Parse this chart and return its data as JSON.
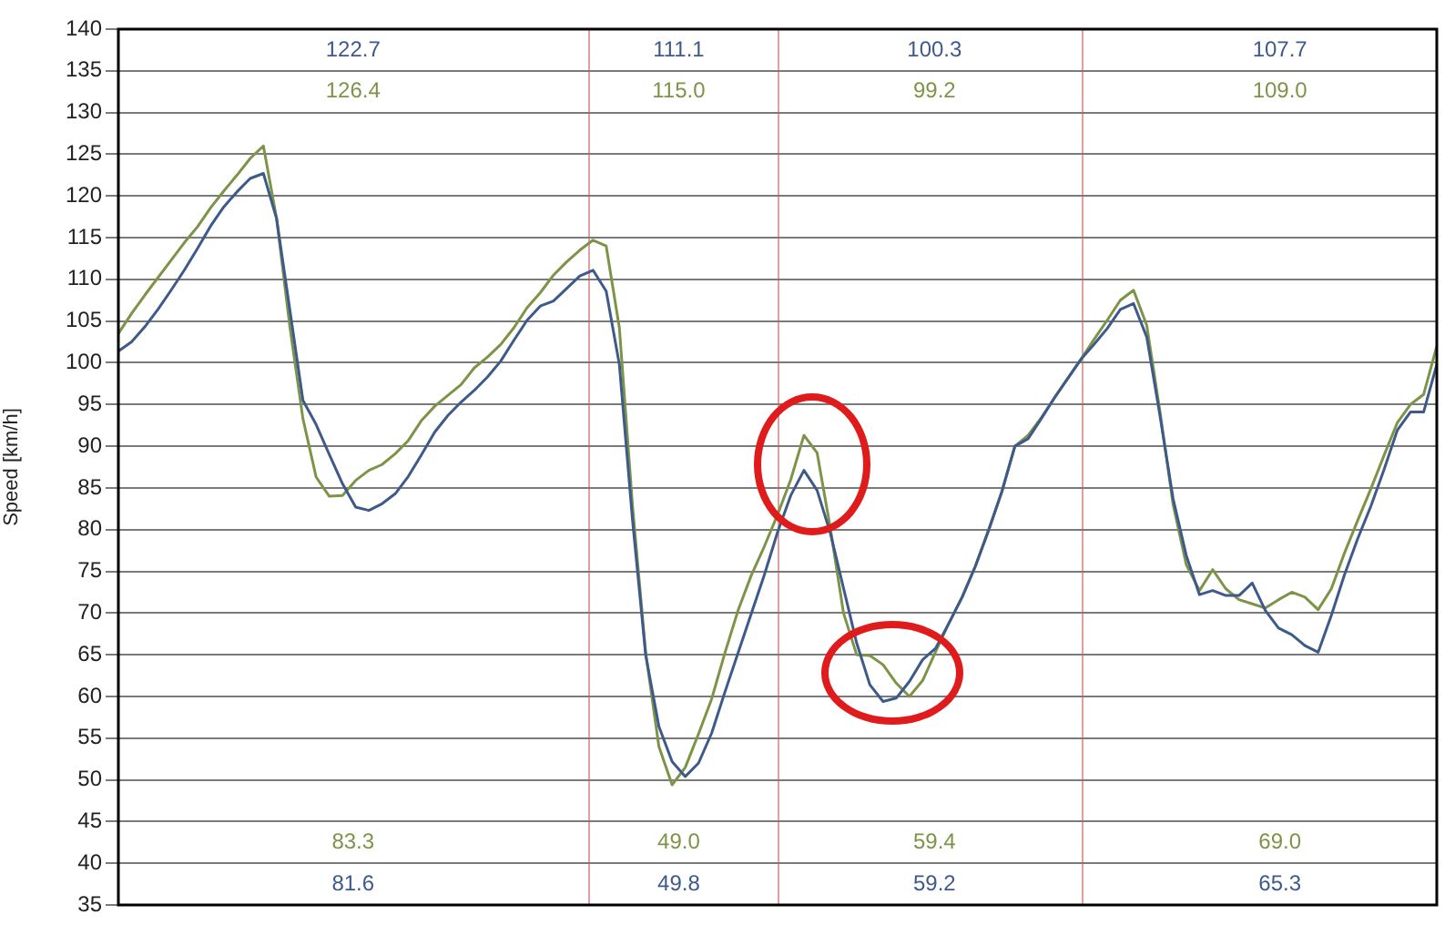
{
  "chart_data": {
    "type": "line",
    "ylabel": "Speed [km/h]",
    "ylim": [
      35,
      140
    ],
    "yticks": [
      35,
      40,
      45,
      50,
      55,
      60,
      65,
      70,
      75,
      80,
      85,
      90,
      95,
      100,
      105,
      110,
      115,
      120,
      125,
      130,
      135,
      140
    ],
    "tick_labels": "y",
    "grid": "y",
    "legend": false,
    "marker": "none",
    "line_style": "solid",
    "categories": [
      null,
      null,
      null,
      null,
      null,
      null,
      null,
      null,
      null,
      null,
      null,
      null,
      null,
      null,
      null,
      null,
      null,
      null,
      null,
      null,
      null,
      null,
      null,
      null,
      null,
      null,
      null,
      null,
      null,
      null,
      null,
      null,
      null,
      null,
      null,
      null,
      null,
      null,
      null,
      null,
      null,
      null,
      null,
      null,
      null,
      null,
      null,
      null,
      null,
      null,
      null,
      null,
      null,
      null,
      null,
      null,
      null,
      null,
      null,
      null,
      null,
      null,
      null,
      null,
      null,
      null,
      null,
      null,
      null,
      null,
      null,
      null,
      null,
      null,
      null,
      null,
      null,
      null,
      null,
      null,
      null,
      null,
      null,
      null,
      null,
      null,
      null,
      null,
      null,
      null,
      null,
      null,
      null,
      null,
      null,
      null,
      null,
      null,
      null,
      null,
      null
    ],
    "series": [
      {
        "color": "#3d5a8a",
        "values": [
          101.4,
          102.5,
          104.3,
          106.4,
          108.7,
          111.1,
          113.7,
          116.4,
          118.7,
          120.5,
          122.1,
          122.7,
          117.3,
          106.4,
          95.5,
          92.6,
          89,
          85.5,
          82.7,
          82.3,
          83.1,
          84.3,
          86.4,
          89,
          91.7,
          93.7,
          95.3,
          96.7,
          98.3,
          100.2,
          102.7,
          105.1,
          106.8,
          107.4,
          108.9,
          110.4,
          111.1,
          108.6,
          99.8,
          81.1,
          64.9,
          56.4,
          52.2,
          50.4,
          52,
          55.6,
          60.5,
          65.2,
          69.9,
          74.6,
          79.7,
          84.1,
          87.1,
          84.7,
          79.6,
          73,
          66.4,
          61.4,
          59.4,
          59.8,
          61.8,
          64.4,
          65.8,
          68.8,
          71.9,
          75.6,
          79.9,
          84.5,
          90,
          90.9,
          93.3,
          95.8,
          98.1,
          100.4,
          102.2,
          104.1,
          106.4,
          107.1,
          103.1,
          93.7,
          83.7,
          76.9,
          72.2,
          72.7,
          72.1,
          72.1,
          73.6,
          70.3,
          68.2,
          67.4,
          66.1,
          65.3,
          69.7,
          74.6,
          78.9,
          82.8,
          87.2,
          91.9,
          94.1,
          94.1,
          99.8
        ]
      },
      {
        "color": "#7d9448",
        "values": [
          103.5,
          105.9,
          108.1,
          110.2,
          112.3,
          114.4,
          116.3,
          118.6,
          120.6,
          122.5,
          124.5,
          126,
          117.3,
          104.4,
          93.3,
          86.3,
          84,
          84.1,
          85.9,
          87.1,
          87.8,
          89.1,
          90.7,
          93.1,
          94.8,
          96.1,
          97.4,
          99.4,
          100.7,
          102.2,
          104.2,
          106.6,
          108.4,
          110.5,
          112.1,
          113.5,
          114.7,
          114,
          104.2,
          82.8,
          65.2,
          54,
          49.4,
          51.5,
          55.5,
          59.7,
          65.2,
          70.3,
          74.5,
          78,
          81.8,
          86,
          91.3,
          89.2,
          80.2,
          70,
          65,
          64.9,
          63.8,
          61.6,
          60,
          61.9,
          65.4,
          68.8,
          71.9,
          75.6,
          79.9,
          84.5,
          90,
          91.3,
          93.4,
          95.8,
          98.1,
          100.4,
          102.8,
          105.1,
          107.5,
          108.7,
          104.5,
          94.2,
          83,
          75.8,
          72.7,
          75.2,
          72.9,
          71.6,
          71.1,
          70.6,
          71.6,
          72.5,
          71.9,
          70.4,
          72.9,
          77.2,
          81.1,
          84.9,
          88.9,
          92.8,
          95,
          96.2,
          102
        ]
      }
    ],
    "annotations": [
      "122.7",
      "126.4",
      "81.6",
      "83.3",
      "111.1",
      "115.0",
      "49.8",
      "49.0",
      "100.3",
      "99.2",
      "59.2",
      "59.4",
      "107.7",
      "109.0",
      "65.3",
      "69.0"
    ]
  }
}
